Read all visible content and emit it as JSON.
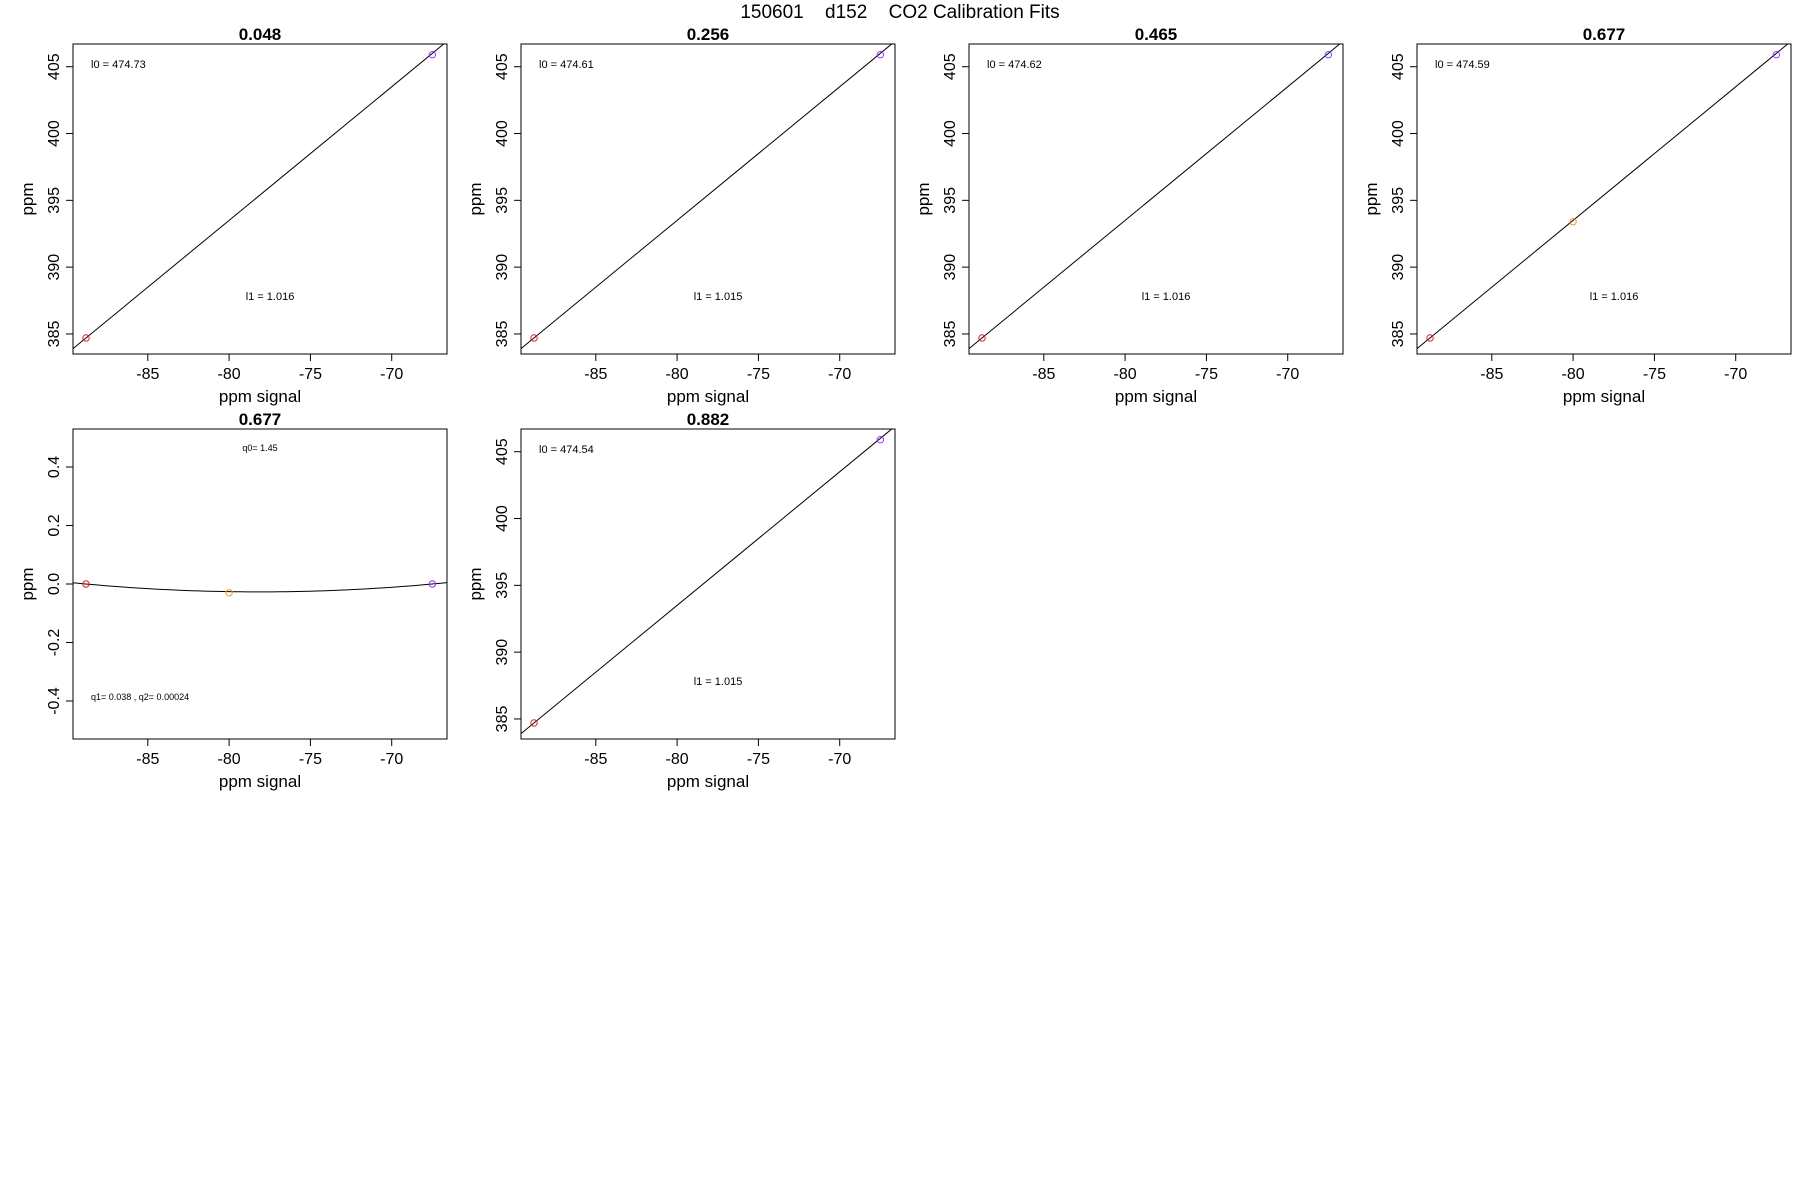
{
  "figure": {
    "title_parts": [
      "150601",
      "d152",
      "CO2 Calibration Fits"
    ]
  },
  "chart_data": [
    {
      "type": "scatter",
      "title": "0.048",
      "xlabel": "ppm signal",
      "ylabel": "ppm",
      "xlim": [
        -89.6,
        -66.6
      ],
      "ylim": [
        383.5,
        406.7
      ],
      "x_ticks": [
        -85,
        -80,
        -75,
        -70
      ],
      "y_ticks": [
        385,
        390,
        395,
        400,
        405
      ],
      "annotations": [
        {
          "text": "l0 =  474.73",
          "pos": "top-left"
        },
        {
          "text": "l1 =  1.016",
          "pos": "bottom-center"
        }
      ],
      "points": [
        {
          "x": -88.8,
          "y": 384.7,
          "color": "#dd2222"
        },
        {
          "x": -67.5,
          "y": 405.9,
          "color": "#9933ee"
        }
      ],
      "fit": {
        "kind": "linear",
        "slope": 1.0,
        "intercept": 473.5
      },
      "grid": false
    },
    {
      "type": "scatter",
      "title": "0.256",
      "xlabel": "ppm signal",
      "ylabel": "ppm",
      "xlim": [
        -89.6,
        -66.6
      ],
      "ylim": [
        383.5,
        406.7
      ],
      "x_ticks": [
        -85,
        -80,
        -75,
        -70
      ],
      "y_ticks": [
        385,
        390,
        395,
        400,
        405
      ],
      "annotations": [
        {
          "text": "l0 =  474.61",
          "pos": "top-left"
        },
        {
          "text": "l1 =  1.015",
          "pos": "bottom-center"
        }
      ],
      "points": [
        {
          "x": -88.8,
          "y": 384.7,
          "color": "#dd2222"
        },
        {
          "x": -67.5,
          "y": 405.9,
          "color": "#9933ee"
        }
      ],
      "fit": {
        "kind": "linear",
        "slope": 1.0,
        "intercept": 473.5
      },
      "grid": false
    },
    {
      "type": "scatter",
      "title": "0.465",
      "xlabel": "ppm signal",
      "ylabel": "ppm",
      "xlim": [
        -89.6,
        -66.6
      ],
      "ylim": [
        383.5,
        406.7
      ],
      "x_ticks": [
        -85,
        -80,
        -75,
        -70
      ],
      "y_ticks": [
        385,
        390,
        395,
        400,
        405
      ],
      "annotations": [
        {
          "text": "l0 =  474.62",
          "pos": "top-left"
        },
        {
          "text": "l1 =  1.016",
          "pos": "bottom-center"
        }
      ],
      "points": [
        {
          "x": -88.8,
          "y": 384.7,
          "color": "#dd2222"
        },
        {
          "x": -67.5,
          "y": 405.9,
          "color": "#7744ee"
        }
      ],
      "fit": {
        "kind": "linear",
        "slope": 1.0,
        "intercept": 473.5
      },
      "grid": false
    },
    {
      "type": "scatter",
      "title": "0.677",
      "xlabel": "ppm signal",
      "ylabel": "ppm",
      "xlim": [
        -89.6,
        -66.6
      ],
      "ylim": [
        383.5,
        406.7
      ],
      "x_ticks": [
        -85,
        -80,
        -75,
        -70
      ],
      "y_ticks": [
        385,
        390,
        395,
        400,
        405
      ],
      "annotations": [
        {
          "text": "l0 =  474.59",
          "pos": "top-left"
        },
        {
          "text": "l1 =  1.016",
          "pos": "bottom-center"
        }
      ],
      "points": [
        {
          "x": -88.8,
          "y": 384.7,
          "color": "#dd2222"
        },
        {
          "x": -80.0,
          "y": 393.4,
          "color": "#ee9922"
        },
        {
          "x": -67.5,
          "y": 405.9,
          "color": "#9933ee"
        }
      ],
      "fit": {
        "kind": "linear",
        "slope": 1.0,
        "intercept": 473.5
      },
      "grid": false
    },
    {
      "type": "scatter",
      "title": "0.677",
      "xlabel": "ppm signal",
      "ylabel": "ppm",
      "xlim": [
        -89.6,
        -66.6
      ],
      "ylim": [
        -0.53,
        0.53
      ],
      "x_ticks": [
        -85,
        -80,
        -75,
        -70
      ],
      "y_ticks": [
        -0.4,
        -0.2,
        0.0,
        0.2,
        0.4
      ],
      "y_tick_labels": [
        "-0.4",
        "-0.2",
        "0.0",
        "0.2",
        "0.4"
      ],
      "annotations": [
        {
          "text": "q0= 1.45",
          "pos": "top-center"
        },
        {
          "text": "q1= 0.038 , q2= 0.00024",
          "pos": "bottom-left"
        }
      ],
      "points": [
        {
          "x": -88.8,
          "y": 0.0,
          "color": "#dd2222"
        },
        {
          "x": -80.0,
          "y": -0.03,
          "color": "#ee9922"
        },
        {
          "x": -67.5,
          "y": 0.0,
          "color": "#9933ee"
        }
      ],
      "fit": {
        "kind": "quadratic",
        "vertex_x": -78.15,
        "vertex_y": -0.027,
        "a": 0.000238
      },
      "grid": false
    },
    {
      "type": "scatter",
      "title": "0.882",
      "xlabel": "ppm signal",
      "ylabel": "ppm",
      "xlim": [
        -89.6,
        -66.6
      ],
      "ylim": [
        383.5,
        406.7
      ],
      "x_ticks": [
        -85,
        -80,
        -75,
        -70
      ],
      "y_ticks": [
        385,
        390,
        395,
        400,
        405
      ],
      "annotations": [
        {
          "text": "l0 =  474.54",
          "pos": "top-left"
        },
        {
          "text": "l1 =  1.015",
          "pos": "bottom-center"
        }
      ],
      "points": [
        {
          "x": -88.8,
          "y": 384.7,
          "color": "#dd2222"
        },
        {
          "x": -67.5,
          "y": 405.9,
          "color": "#9933ee"
        }
      ],
      "fit": {
        "kind": "linear",
        "slope": 1.0,
        "intercept": 473.5
      },
      "grid": false
    }
  ]
}
